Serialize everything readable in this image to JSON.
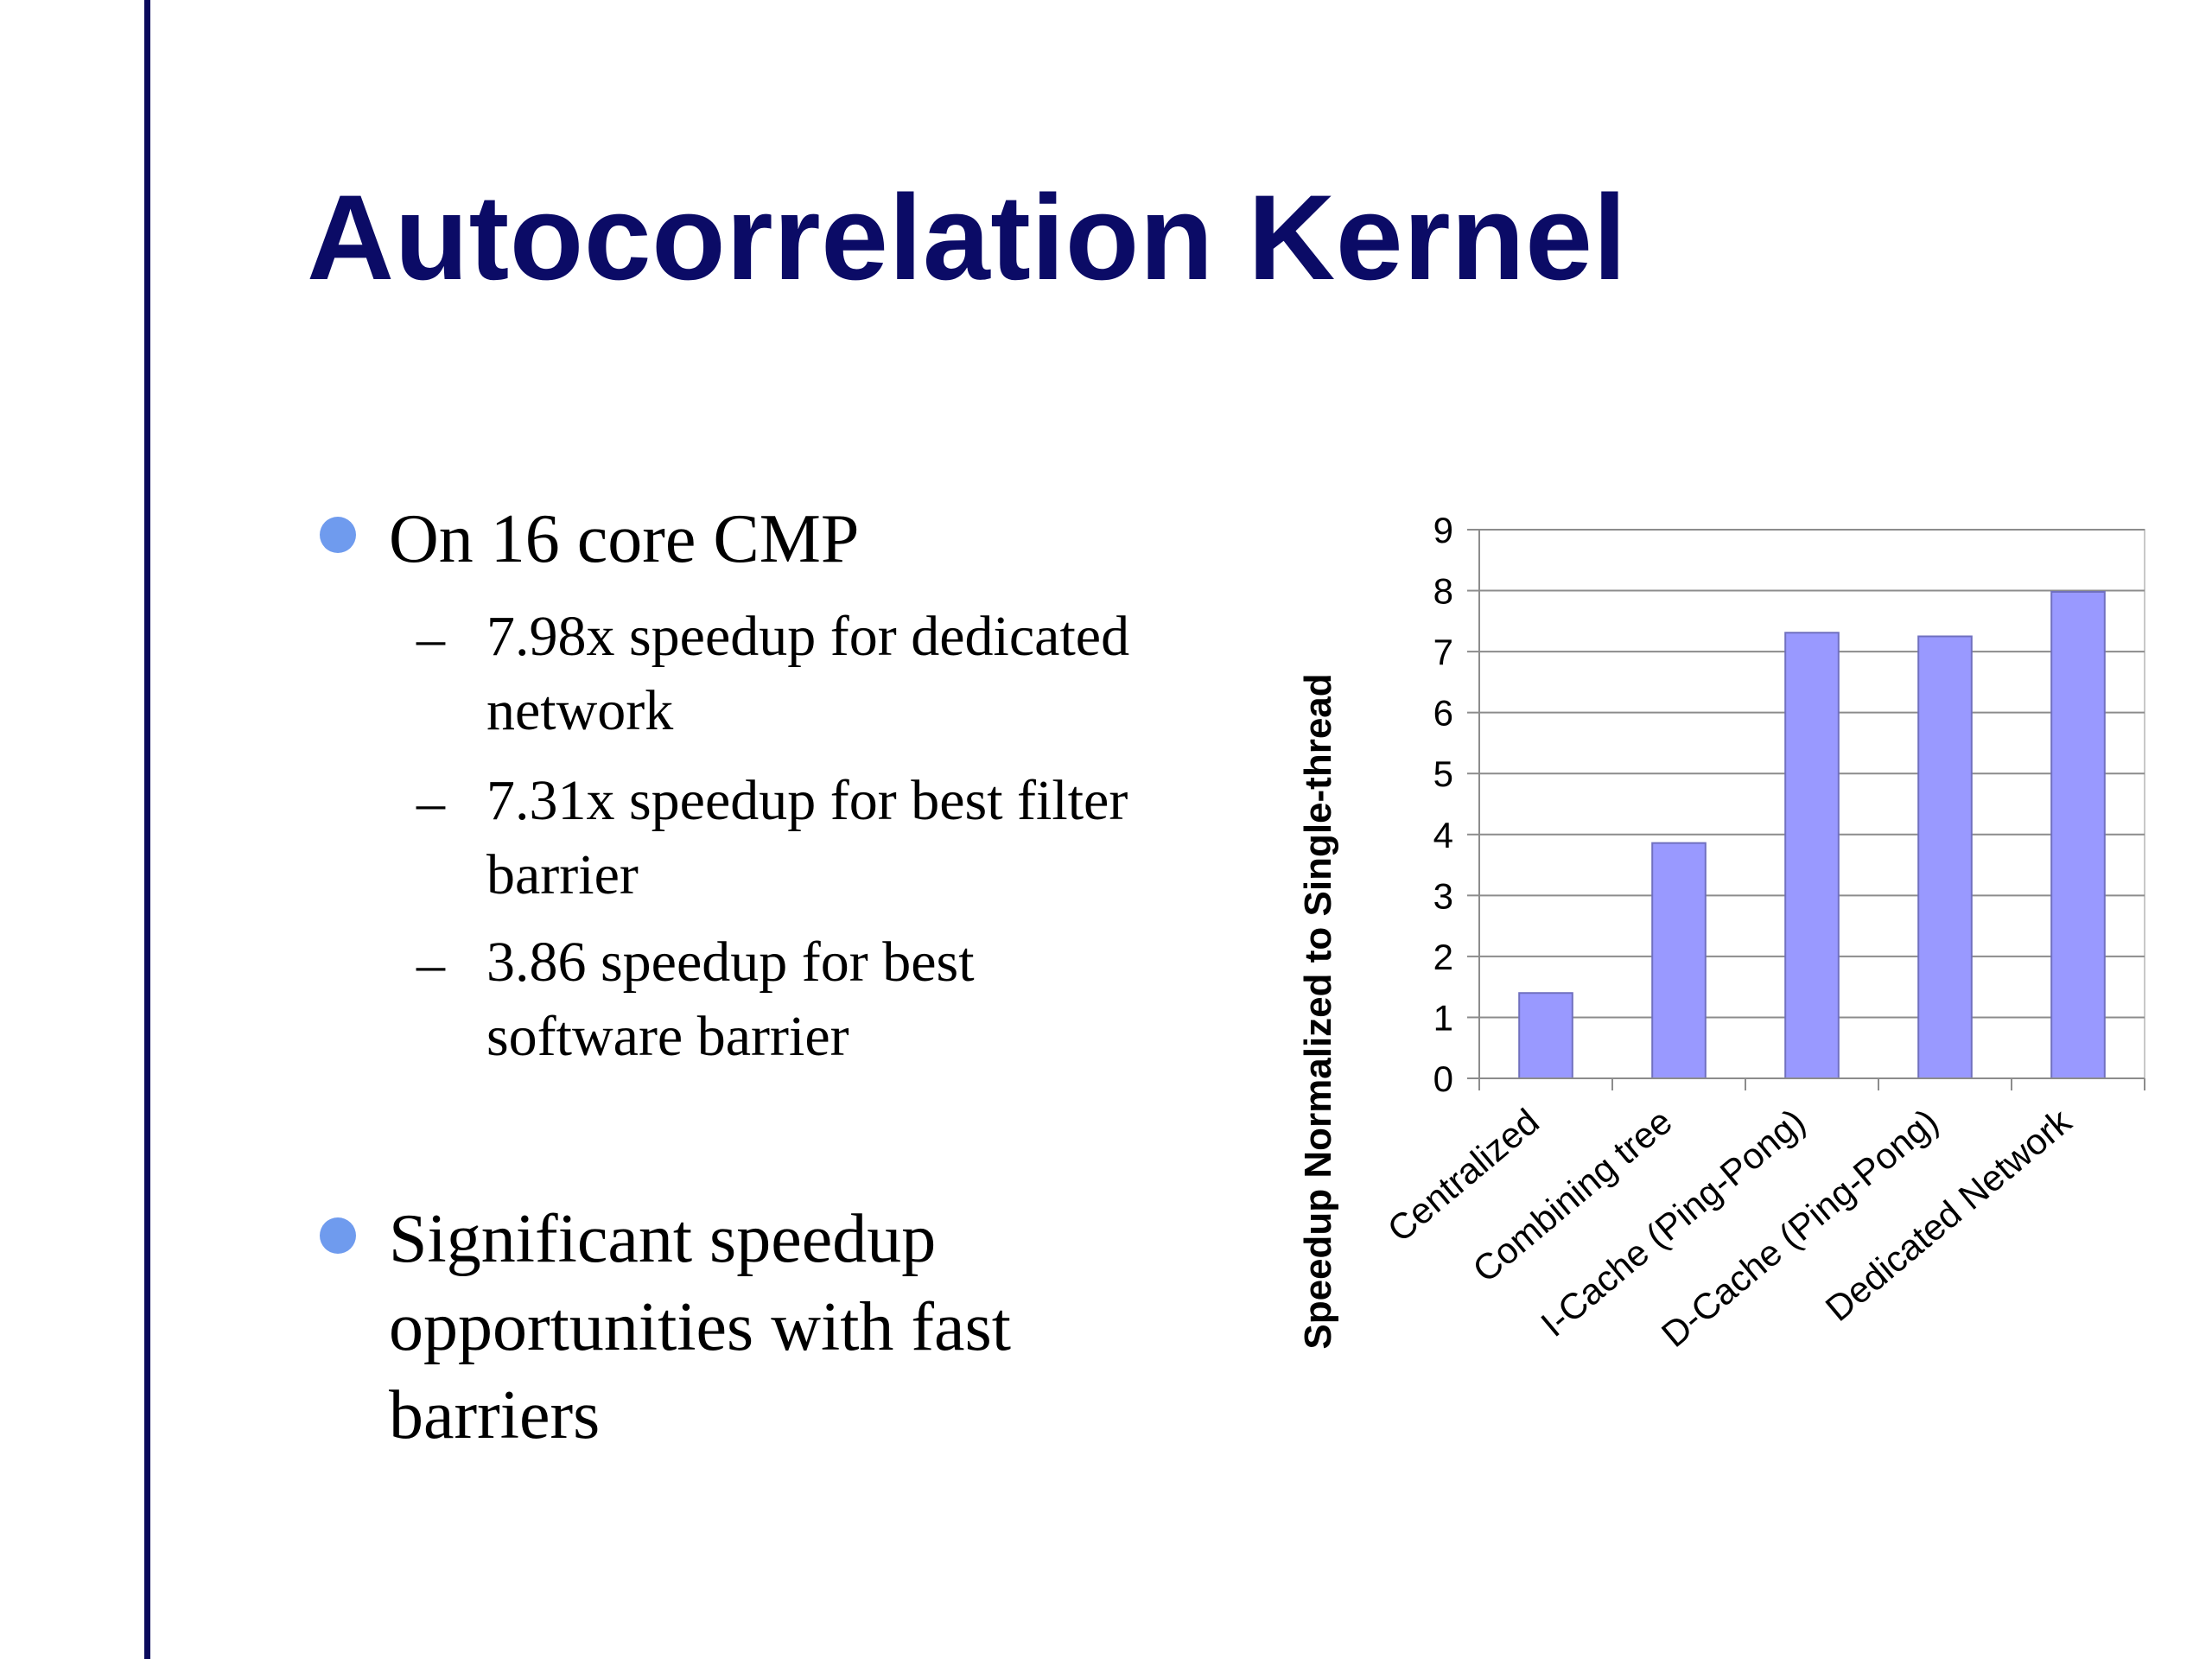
{
  "slide": {
    "title": "Autocorrelation Kernel",
    "bullets": [
      {
        "text": "On 16 core CMP",
        "sub": [
          "7.98x speedup for dedicated network",
          "7.31x speedup for best filter barrier",
          "3.86 speedup for best software barrier"
        ]
      },
      {
        "text": "Significant speedup opportunities with fast barriers"
      }
    ],
    "dash_glyph": "–"
  },
  "colors": {
    "title": "#0b0b66",
    "bullet_dot": "#6f9bee",
    "bar_fill": "#9999ff",
    "left_rule": "#0a0a5c"
  },
  "chart_data": {
    "type": "bar",
    "categories": [
      "Centralized",
      "Combining tree",
      "I-Cache (Ping-Pong)",
      "D-Cache (Ping-Pong)",
      "Dedicated Network"
    ],
    "values": [
      1.4,
      3.86,
      7.31,
      7.25,
      7.98
    ],
    "title": "",
    "xlabel": "",
    "ylabel": "Speedup Normalized to Single-thread",
    "ylim": [
      0,
      9
    ],
    "yticks": [
      0,
      1,
      2,
      3,
      4,
      5,
      6,
      7,
      8,
      9
    ],
    "grid": true,
    "legend": "none"
  }
}
